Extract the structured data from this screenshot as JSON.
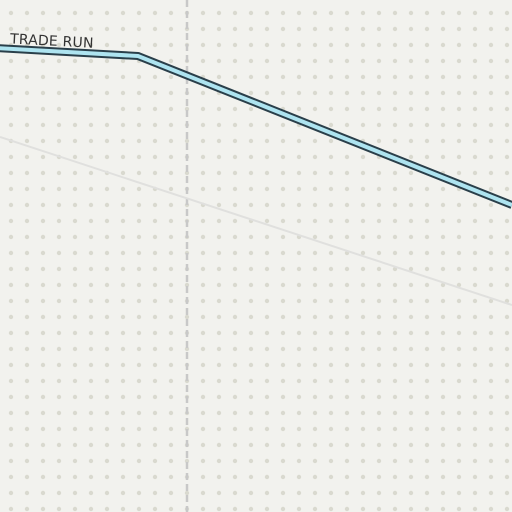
{
  "map": {
    "colors": {
      "background": "#f2f2ee",
      "dot": "#d9d9cf",
      "minor_road": "#e0e0de",
      "boundary": "#c8c8c8",
      "stream_fill": "#aee4f0",
      "stream_casing": "#2a3f4a"
    },
    "labels": {
      "stream_name": "TRADE RUN"
    }
  }
}
